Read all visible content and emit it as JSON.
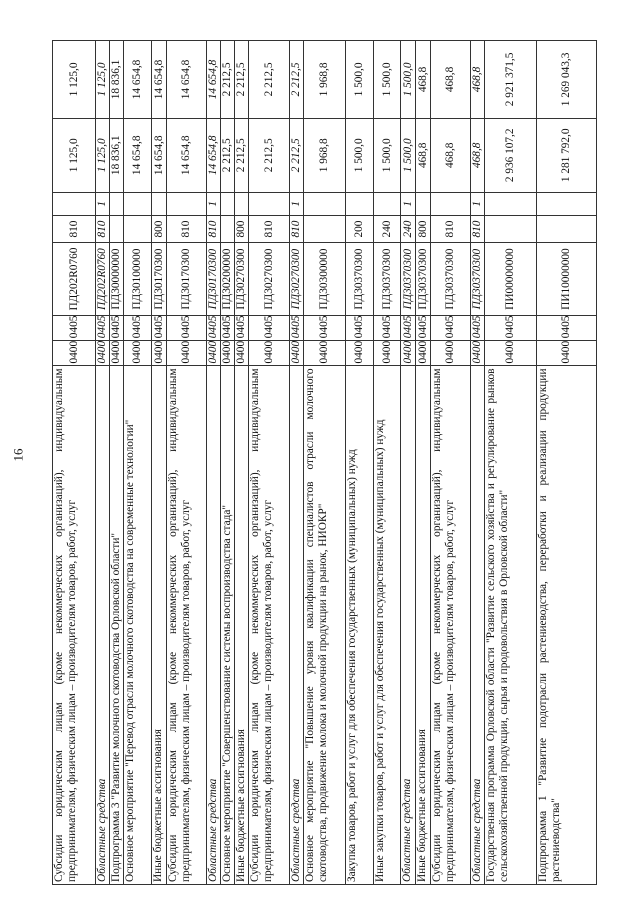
{
  "page_number": "16",
  "rows": [
    {
      "desc": "Субсидии юридическим лицам (кроме некоммерческих организаций), индивидуальным предпринимателям, физическим лицам – производителям товаров, работ, услуг",
      "rz": "0400",
      "pr": "0405",
      "csr": "ПД202R0760",
      "vr": "810",
      "flag": "",
      "s1": "1 125,0",
      "s2": "1 125,0",
      "italic": false,
      "h": 43
    },
    {
      "desc": "Областные средства",
      "rz": "0400",
      "pr": "0405",
      "csr": "ПД202R0760",
      "vr": "810",
      "flag": "1",
      "s1": "1 125,0",
      "s2": "1 125,0",
      "italic": true,
      "h": 13
    },
    {
      "desc": "Подпрограмма 3 \"Развитие молочного скотоводства Орловской области\"",
      "rz": "0400",
      "pr": "0405",
      "csr": "ПД30000000",
      "vr": "",
      "flag": "",
      "s1": "18 836,1",
      "s2": "18 836,1",
      "italic": false,
      "h": 14
    },
    {
      "desc": "Основное мероприятие \"Перевод отрасли молочного скотоводства на современные технологии\"",
      "rz": "0400",
      "pr": "0405",
      "csr": "ПД30100000",
      "vr": "",
      "flag": "",
      "s1": "14 654,8",
      "s2": "14 654,8",
      "italic": false,
      "h": 28
    },
    {
      "desc": "Иные бюджетные ассигнования",
      "rz": "0400",
      "pr": "0405",
      "csr": "ПД30170300",
      "vr": "800",
      "flag": "",
      "s1": "14 654,8",
      "s2": "14 654,8",
      "italic": false,
      "h": 15
    },
    {
      "desc": "Субсидии юридическим лицам (кроме некоммерческих организаций), индивидуальным предпринимателям, физическим лицам – производителям товаров, работ, услуг",
      "rz": "0400",
      "pr": "0405",
      "csr": "ПД30170300",
      "vr": "810",
      "flag": "",
      "s1": "14 654,8",
      "s2": "14 654,8",
      "italic": false,
      "h": 40
    },
    {
      "desc": "Областные средства",
      "rz": "0400",
      "pr": "0405",
      "csr": "ПД30170300",
      "vr": "810",
      "flag": "1",
      "s1": "14 654,8",
      "s2": "14 654,8",
      "italic": true,
      "h": 12
    },
    {
      "desc": "Основное мероприятие \"Совершенствование системы воспроизводства стада\"",
      "rz": "0400",
      "pr": "0405",
      "csr": "ПД30200000",
      "vr": "",
      "flag": "",
      "s1": "2 212,5",
      "s2": "2 212,5",
      "italic": false,
      "h": 14
    },
    {
      "desc": "Иные бюджетные ассигнования",
      "rz": "0400",
      "pr": "0405",
      "csr": "ПД30270300",
      "vr": "800",
      "flag": "",
      "s1": "2 212,5",
      "s2": "2 212,5",
      "italic": false,
      "h": 13
    },
    {
      "desc": "Субсидии юридическим лицам (кроме некоммерческих организаций), индивидуальным предпринимателям, физическим лицам – производителям товаров, работ, услуг",
      "rz": "0400",
      "pr": "0405",
      "csr": "ПД30270300",
      "vr": "810",
      "flag": "",
      "s1": "2 212,5",
      "s2": "2 212,5",
      "italic": false,
      "h": 41
    },
    {
      "desc": "Областные средства",
      "rz": "0400",
      "pr": "0405",
      "csr": "ПД30270300",
      "vr": "810",
      "flag": "1",
      "s1": "2 212,5",
      "s2": "2 212,5",
      "italic": true,
      "h": 13
    },
    {
      "desc": "Основное мероприятие \"Повышение уровня квалификации специалистов отрасли молочного скотоводства, продвижение молока и молочной продукции на рынок, НИОКР\"",
      "rz": "0400",
      "pr": "0405",
      "csr": "ПД30300000",
      "vr": "",
      "flag": "",
      "s1": "1 968,8",
      "s2": "1 968,8",
      "italic": false,
      "h": 42
    },
    {
      "desc": "Закупка товаров, работ и услуг для обеспечения государственных (муниципальных) нужд",
      "rz": "0400",
      "pr": "0405",
      "csr": "ПД30370300",
      "vr": "200",
      "flag": "",
      "s1": "1 500,0",
      "s2": "1 500,0",
      "italic": false,
      "h": 28
    },
    {
      "desc": "Иные закупки товаров, работ и услуг для обеспечения государственных (муниципальных) нужд",
      "rz": "0400",
      "pr": "0405",
      "csr": "ПД30370300",
      "vr": "240",
      "flag": "",
      "s1": "1 500,0",
      "s2": "1 500,0",
      "italic": false,
      "h": 27
    },
    {
      "desc": "Областные средства",
      "rz": "0400",
      "pr": "0405",
      "csr": "ПД30370300",
      "vr": "240",
      "flag": "1",
      "s1": "1 500,0",
      "s2": "1 500,0",
      "italic": true,
      "h": 15
    },
    {
      "desc": "Иные бюджетные ассигнования",
      "rz": "0400",
      "pr": "0405",
      "csr": "ПД30370300",
      "vr": "800",
      "flag": "",
      "s1": "468,8",
      "s2": "468,8",
      "italic": false,
      "h": 15
    },
    {
      "desc": "Субсидии юридическим лицам (кроме некоммерческих организаций), индивидуальным предпринимателям, физическим лицам – производителям товаров, работ, услуг",
      "rz": "0400",
      "pr": "0405",
      "csr": "ПД30370300",
      "vr": "810",
      "flag": "",
      "s1": "468,8",
      "s2": "468,8",
      "italic": false,
      "h": 40
    },
    {
      "desc": "Областные средства",
      "rz": "0400",
      "pr": "0405",
      "csr": "ПД30370300",
      "vr": "810",
      "flag": "1",
      "s1": "468,8",
      "s2": "468,8",
      "italic": true,
      "h": 13
    },
    {
      "desc": "Государственная программа Орловской области \"Развитие сельского хозяйства и регулирование рынков сельскохозяйственной продукции, сырья и продовольствия в Орловской области\"",
      "rz": "0400",
      "pr": "0405",
      "csr": "ПИ00000000",
      "vr": "",
      "flag": "",
      "s1": "2 936 107,2",
      "s2": "2 921 371,5",
      "italic": false,
      "h": 52
    },
    {
      "desc": "Подпрограмма 1 \"Развитие подотрасли растениеводства, переработки и реализации продукции растениеводства\"",
      "rz": "0400",
      "pr": "0405",
      "csr": "ПИ10000000",
      "vr": "",
      "flag": "",
      "s1": "1 281 792,0",
      "s2": "1 269 043,3",
      "italic": false,
      "h": 60
    }
  ]
}
